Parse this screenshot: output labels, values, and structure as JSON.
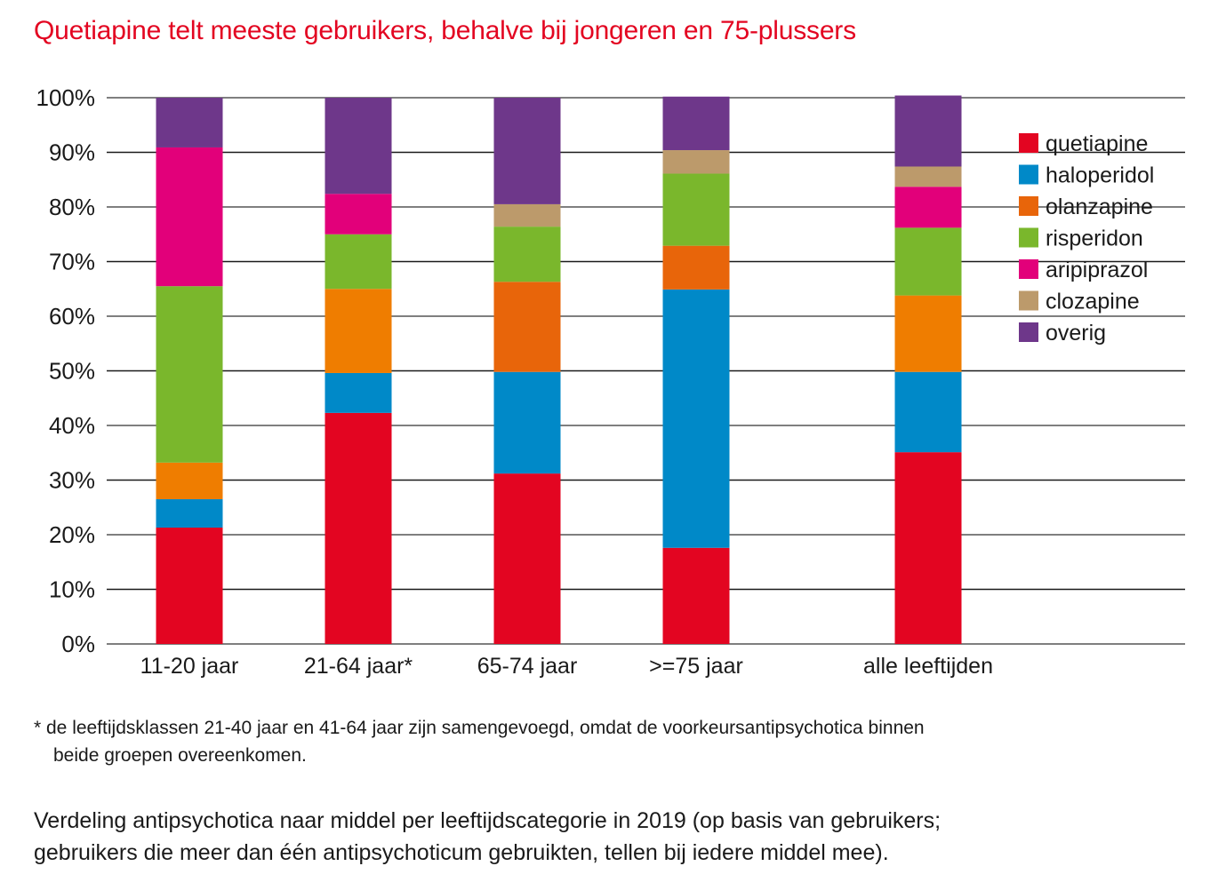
{
  "chart_data": {
    "type": "bar",
    "stacked": true,
    "title": "Quetiapine telt meeste gebruikers, behalve bij jongeren en 75-plussers",
    "xlabel": "",
    "ylabel": "",
    "ylim": [
      0,
      100
    ],
    "y_ticks": [
      "0%",
      "10%",
      "20%",
      "30%",
      "40%",
      "50%",
      "60%",
      "70%",
      "80%",
      "90%",
      "100%"
    ],
    "grid": true,
    "legend_position": "right",
    "categories": [
      "11-20 jaar",
      "21-64 jaar*",
      "65-74 jaar",
      ">=75 jaar",
      "alle leeftijden"
    ],
    "series": [
      {
        "name": "quetiapine",
        "color": "#e30521",
        "values": [
          21.3,
          42.3,
          31.2,
          17.6,
          35.1
        ]
      },
      {
        "name": "haloperidol",
        "color": "#0089c8",
        "values": [
          5.2,
          7.3,
          18.6,
          47.3,
          14.7
        ]
      },
      {
        "name": "olanzapine",
        "color": "#ef7d00",
        "values": [
          6.7,
          15.4,
          0,
          0,
          14.0
        ]
      },
      {
        "name": "olanzapine_dark",
        "legend": false,
        "color": "#e8650a",
        "values": [
          0,
          0,
          16.5,
          8.0,
          0
        ]
      },
      {
        "name": "risperidon",
        "color": "#7ab72c",
        "values": [
          32.3,
          10.0,
          10.1,
          13.2,
          12.4
        ]
      },
      {
        "name": "aripiprazol",
        "color": "#e2007a",
        "values": [
          25.4,
          7.4,
          0,
          0,
          7.5
        ]
      },
      {
        "name": "clozapine",
        "color": "#bc9a6b",
        "values": [
          0,
          0,
          4.1,
          4.3,
          3.7
        ]
      },
      {
        "name": "overig",
        "color": "#6e378a",
        "values": [
          9.1,
          17.6,
          19.5,
          9.8,
          13.0
        ]
      }
    ],
    "legend": [
      {
        "name": "quetiapine",
        "color": "#e30521"
      },
      {
        "name": "haloperidol",
        "color": "#0089c8"
      },
      {
        "name": "olanzapine",
        "color": "#e8650a"
      },
      {
        "name": "risperidon",
        "color": "#7ab72c"
      },
      {
        "name": "aripiprazol",
        "color": "#e2007a"
      },
      {
        "name": "clozapine",
        "color": "#bc9a6b"
      },
      {
        "name": "overig",
        "color": "#6e378a"
      }
    ]
  },
  "footnote": {
    "line1": "* de leeftijdsklassen 21-40 jaar en 41-64 jaar zijn samengevoegd, omdat de voorkeursantipsychotica binnen",
    "line2": "beide groepen overeenkomen."
  },
  "caption": {
    "line1": "Verdeling antipsychotica naar middel per leeftijdscategorie in 2019 (op basis van gebruikers;",
    "line2": "gebruikers die meer dan één antipsychoticum gebruikten, tellen bij iedere middel mee)."
  },
  "colors": {
    "title": "#e30521"
  }
}
